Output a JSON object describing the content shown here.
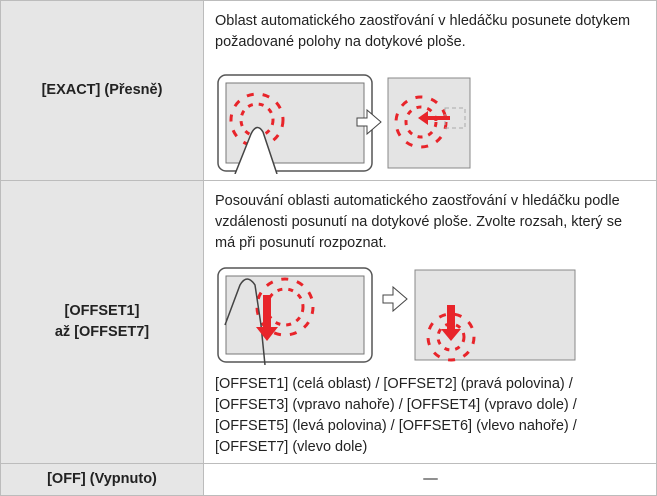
{
  "table": {
    "rows": [
      {
        "label": [
          "[EXACT] (Přesně)"
        ],
        "description": "Oblast automatického zaostřování v hledáčku posunete dotykem požadované polohy na dotykové ploše."
      },
      {
        "label": [
          "[OFFSET1]",
          "až [OFFSET7]"
        ],
        "description": "Posouvání oblasti automatického zaostřování v hledáčku podle vzdálenosti posunutí na dotykové ploše. Zvolte rozsah, který se má při posunutí rozpoznat.",
        "options": "[OFFSET1] (celá oblast) / [OFFSET2] (pravá polovina) / [OFFSET3] (vpravo nahoře) / [OFFSET4] (vpravo dole) / [OFFSET5] (levá polovina) / [OFFSET6] (vlevo nahoře) / [OFFSET7] (vlevo dole)"
      },
      {
        "label": [
          "[OFF] (Vypnuto)"
        ],
        "description": "—"
      }
    ]
  }
}
